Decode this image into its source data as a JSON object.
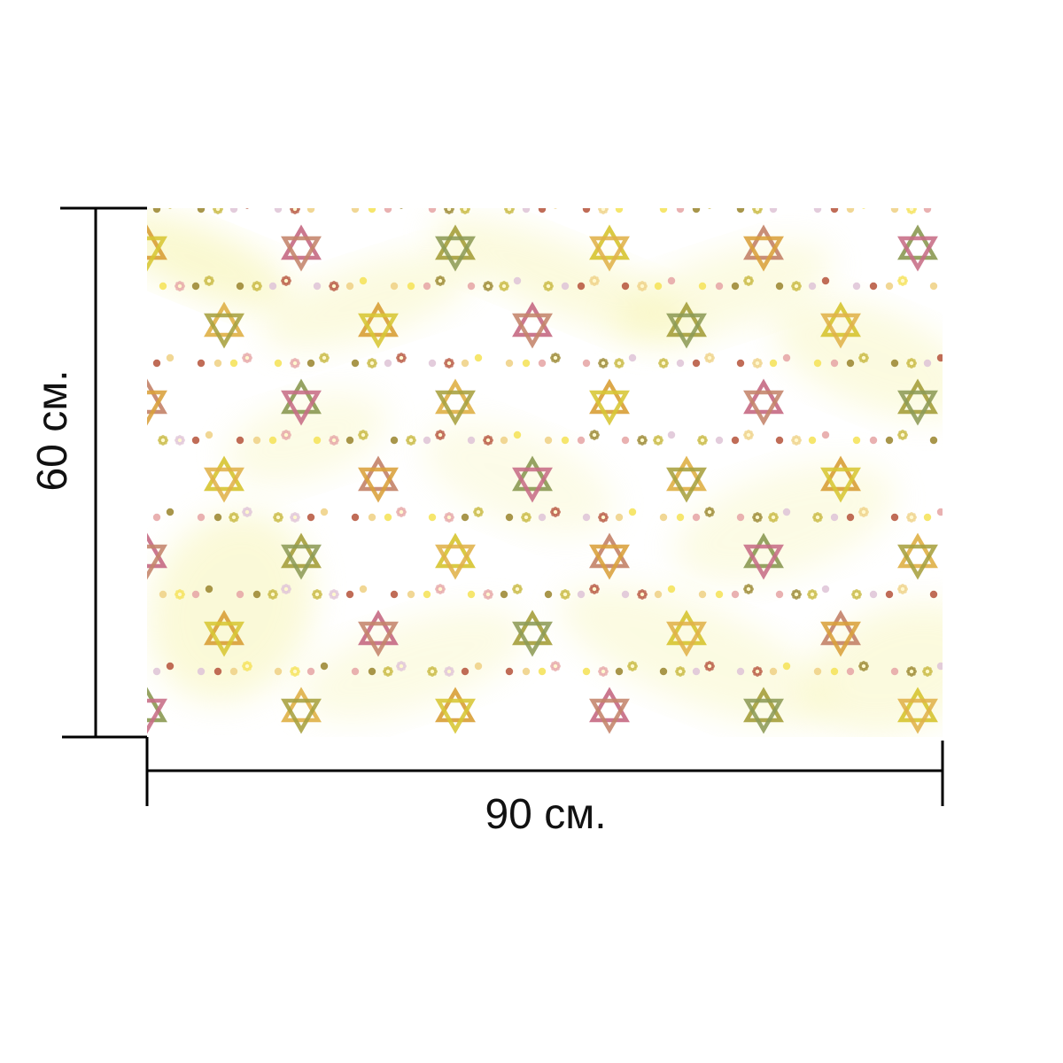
{
  "product": {
    "pattern_name": "star-of-david-pattern",
    "colors": {
      "background": "#ffffff",
      "wash": "#f4f19a",
      "star_palette": [
        "#d9a13b",
        "#c76d86",
        "#a7a13f",
        "#d7c634",
        "#c4846b",
        "#8d9b56",
        "#e0b24a"
      ],
      "dot_palette": [
        "#f5e35d",
        "#e7a8a8",
        "#9e8b37",
        "#c9bb45",
        "#e0c6d8",
        "#b95c45",
        "#efd38a"
      ]
    }
  },
  "dimensions": {
    "width_label": "90 см.",
    "height_label": "60 см."
  }
}
